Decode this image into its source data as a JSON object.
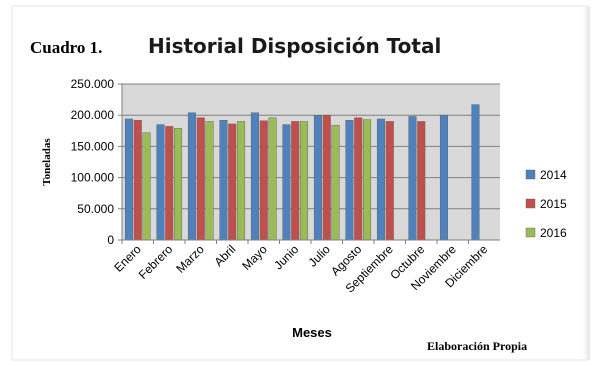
{
  "chart_data": {
    "type": "bar",
    "caption_prefix": "Cuadro 1.",
    "title": "Historial Disposición Total",
    "xlabel": "Meses",
    "ylabel": "Toneladas",
    "note": "Elaboración Propia",
    "ylim": [
      0,
      250000
    ],
    "yticks": [
      0,
      50000,
      100000,
      150000,
      200000,
      250000
    ],
    "ytick_labels": [
      "0",
      "50.000",
      "100.000",
      "150.000",
      "200.000",
      "250.000"
    ],
    "grid": "horizontal",
    "legend_position": "right",
    "categories": [
      "Enero",
      "Febrero",
      "Marzo",
      "Abril",
      "Mayo",
      "Junio",
      "Julio",
      "Agosto",
      "Septiembre",
      "Octubre",
      "Noviembre",
      "Diciembre"
    ],
    "series": [
      {
        "name": "2014",
        "color": "#4f81bd",
        "values": [
          194000,
          185000,
          204000,
          192000,
          204000,
          185000,
          200000,
          192000,
          194000,
          198000,
          200000,
          217000
        ]
      },
      {
        "name": "2015",
        "color": "#c0504d",
        "values": [
          192000,
          182000,
          196000,
          186000,
          191000,
          190000,
          200000,
          196000,
          190000,
          190000,
          null,
          null
        ]
      },
      {
        "name": "2016",
        "color": "#9bbb59",
        "values": [
          172000,
          179000,
          190000,
          190000,
          196000,
          190000,
          184000,
          193000,
          null,
          null,
          null,
          null
        ]
      }
    ],
    "plot_background": "#d9d9d9"
  }
}
